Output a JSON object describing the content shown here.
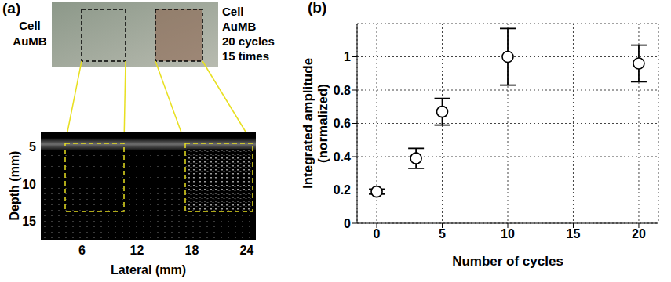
{
  "chart_data": [
    {
      "type": "image",
      "label": "(a)",
      "annotations": {
        "left": [
          "Cell",
          "AuMB"
        ],
        "right": [
          "Cell",
          "AuMB",
          "20 cycles",
          "15 times"
        ]
      },
      "xlabel": "Lateral (mm)",
      "ylabel": "Depth (mm)",
      "xlim": [
        1.5,
        25
      ],
      "ylim": [
        3,
        17.5
      ],
      "xticks": [
        6,
        12,
        18,
        24
      ],
      "yticks": [
        5,
        10,
        15
      ]
    },
    {
      "type": "scatter",
      "label": "(b)",
      "xlabel": "Number of cycles",
      "ylabel": [
        "Integrated amplitude",
        "(normalized)"
      ],
      "x": [
        0,
        3,
        5,
        10,
        20
      ],
      "values": [
        0.19,
        0.39,
        0.67,
        1.0,
        0.96
      ],
      "errors": [
        0.015,
        0.06,
        0.08,
        0.17,
        0.11
      ],
      "xlim": [
        -1.5,
        21.5
      ],
      "ylim": [
        0,
        1.2
      ],
      "xticks": [
        0,
        5,
        10,
        15,
        20
      ],
      "yticks": [
        0,
        0.2,
        0.4,
        0.6,
        0.8,
        1
      ],
      "grid": true,
      "marker": "circle",
      "color": "#000000"
    }
  ]
}
